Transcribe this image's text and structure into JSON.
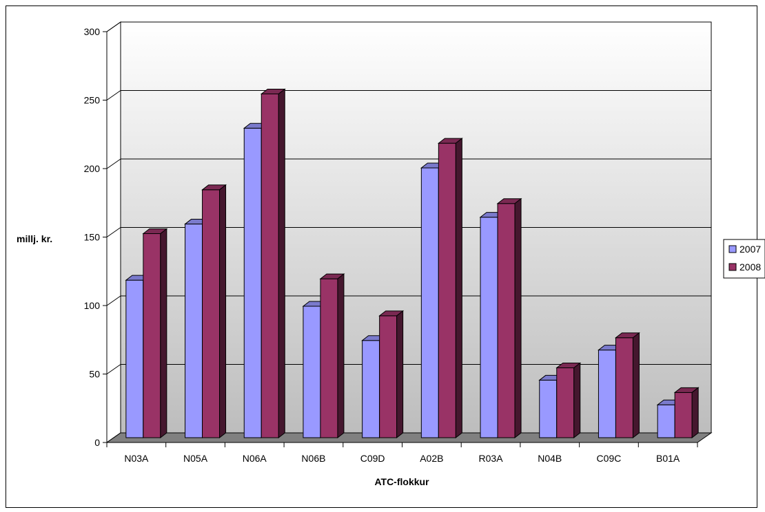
{
  "chart_data": {
    "type": "bar",
    "style": "3d-clustered-column",
    "categories": [
      "N03A",
      "N05A",
      "N06A",
      "N06B",
      "C09D",
      "A02B",
      "R03A",
      "N04B",
      "C09C",
      "B01A"
    ],
    "series": [
      {
        "name": "2007",
        "values": [
          115,
          156,
          226,
          96,
          71,
          197,
          161,
          42,
          64,
          24
        ],
        "color": "#9999FF"
      },
      {
        "name": "2008",
        "values": [
          149,
          181,
          251,
          116,
          89,
          215,
          171,
          51,
          73,
          33
        ],
        "color": "#993366"
      }
    ],
    "xlabel": "ATC-flokkur",
    "ylabel": "millj. kr.",
    "ylim": [
      0,
      300
    ],
    "yticks": [
      0,
      50,
      100,
      150,
      200,
      250,
      300
    ],
    "grid": true,
    "legend": "right"
  }
}
